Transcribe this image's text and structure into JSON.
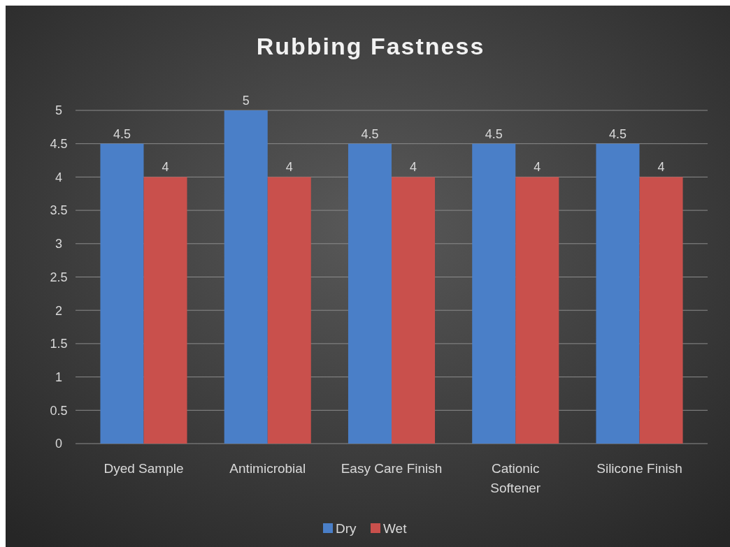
{
  "chart_data": {
    "type": "bar",
    "title": "Rubbing Fastness",
    "categories": [
      "Dyed Sample",
      "Antimicrobial",
      "Easy Care Finish",
      "Cationic Softener",
      "Silicone Finish"
    ],
    "series": [
      {
        "name": "Dry",
        "color": "#4a7fc8",
        "values": [
          4.5,
          5,
          4.5,
          4.5,
          4.5
        ]
      },
      {
        "name": "Wet",
        "color": "#c9504c",
        "values": [
          4,
          4,
          4,
          4,
          4
        ]
      }
    ],
    "ylim": [
      0,
      5
    ],
    "yticks": [
      0,
      0.5,
      1,
      1.5,
      2,
      2.5,
      3,
      3.5,
      4,
      4.5,
      5
    ],
    "grid": "y",
    "legend": "bottom",
    "data_labels": true
  }
}
